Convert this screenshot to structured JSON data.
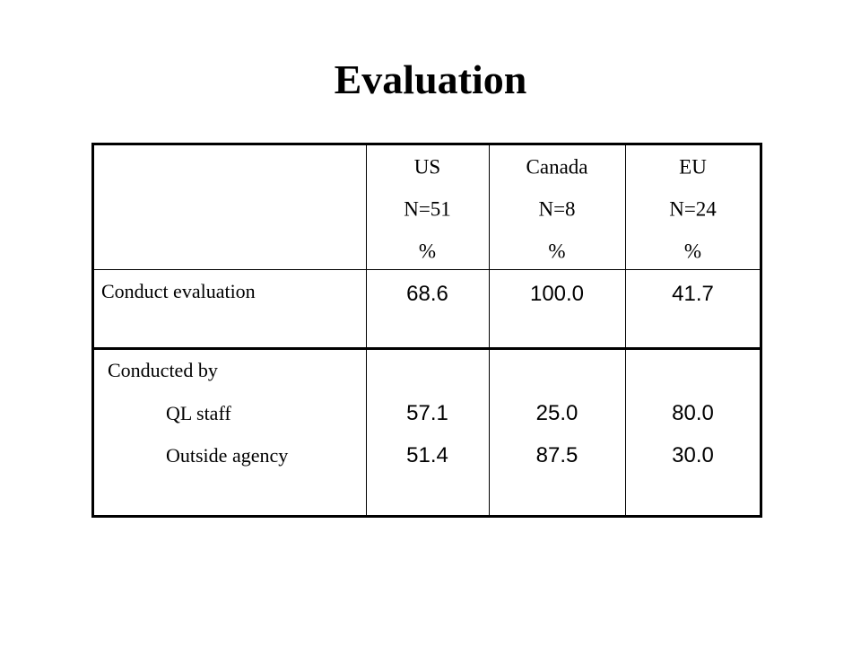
{
  "title": "Evaluation",
  "table": {
    "columns": [
      [
        "US",
        "N=51",
        "%"
      ],
      [
        "Canada",
        "N=8",
        "%"
      ],
      [
        "EU",
        "N=24",
        "%"
      ]
    ],
    "rows": [
      {
        "label": [
          "Conduct evaluation"
        ],
        "values": [
          [
            "68.6"
          ],
          [
            "100.0"
          ],
          [
            "41.7"
          ]
        ]
      },
      {
        "label": [
          "Conducted by",
          "QL staff",
          "Outside agency"
        ],
        "values": [
          [
            "57.1",
            "51.4"
          ],
          [
            "25.0",
            "87.5"
          ],
          [
            "80.0",
            "30.0"
          ]
        ]
      }
    ]
  }
}
